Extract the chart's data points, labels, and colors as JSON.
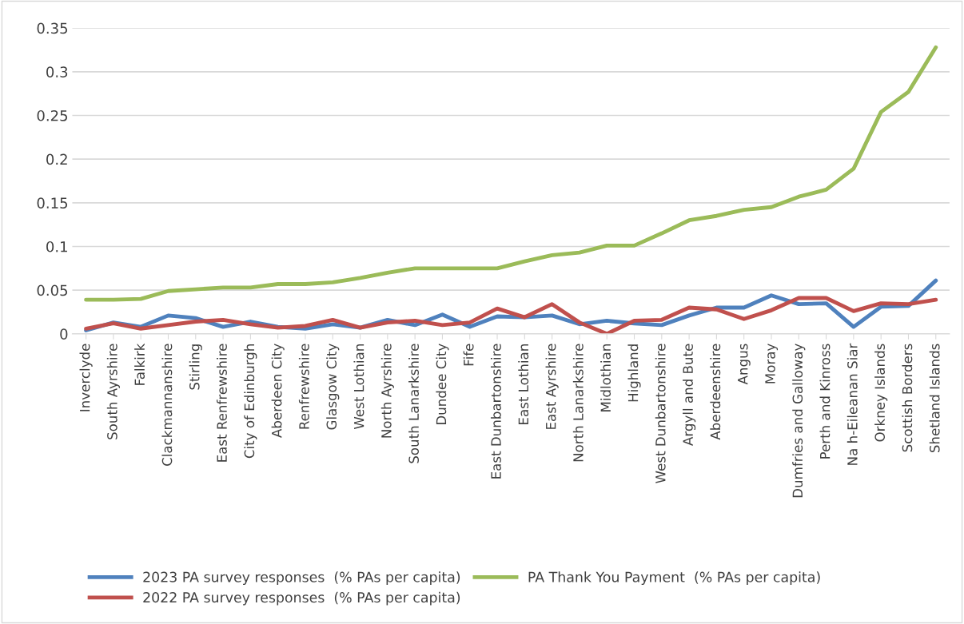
{
  "chart_data": {
    "type": "line",
    "categories": [
      "Inverclyde",
      "South Ayrshire",
      "Falkirk",
      "Clackmannanshire",
      "Stirling",
      "East Renfrewshire",
      "City of Edinburgh",
      "Aberdeen City",
      "Renfrewshire",
      "Glasgow City",
      "West Lothian",
      "North Ayrshire",
      "South Lanarkshire",
      "Dundee City",
      "Fife",
      "East Dunbartonshire",
      "East Lothian",
      "East Ayrshire",
      "North Lanarkshire",
      "Midlothian",
      "Highland",
      "West Dunbartonshire",
      "Argyll and Bute",
      "Aberdeenshire",
      "Angus",
      "Moray",
      "Dumfries and Galloway",
      "Perth and Kinross",
      "Na h-Eileanan Siar",
      "Orkney Islands",
      "Scottish Borders",
      "Shetland Islands"
    ],
    "series": [
      {
        "name": "2023 PA survey responses  (% PAs per capita)",
        "color": "#4f81bd",
        "values": [
          0.004,
          0.013,
          0.008,
          0.021,
          0.018,
          0.008,
          0.014,
          0.008,
          0.006,
          0.011,
          0.007,
          0.016,
          0.01,
          0.022,
          0.008,
          0.02,
          0.019,
          0.021,
          0.011,
          0.015,
          0.012,
          0.01,
          0.021,
          0.03,
          0.03,
          0.044,
          0.034,
          0.035,
          0.008,
          0.031,
          0.032,
          0.061
        ]
      },
      {
        "name": "2022 PA survey responses  (% PAs per capita)",
        "color": "#c0504d",
        "values": [
          0.006,
          0.012,
          0.006,
          0.01,
          0.014,
          0.016,
          0.011,
          0.007,
          0.009,
          0.016,
          0.007,
          0.013,
          0.015,
          0.01,
          0.013,
          0.029,
          0.019,
          0.034,
          0.013,
          0.0,
          0.015,
          0.016,
          0.03,
          0.028,
          0.017,
          0.027,
          0.041,
          0.041,
          0.026,
          0.035,
          0.034,
          0.039
        ]
      },
      {
        "name": "PA Thank You Payment  (% PAs per capita)",
        "color": "#9bbb59",
        "values": [
          0.039,
          0.039,
          0.04,
          0.049,
          0.051,
          0.053,
          0.053,
          0.057,
          0.057,
          0.059,
          0.064,
          0.07,
          0.075,
          0.075,
          0.075,
          0.075,
          0.083,
          0.09,
          0.093,
          0.101,
          0.101,
          0.115,
          0.13,
          0.135,
          0.142,
          0.145,
          0.157,
          0.165,
          0.189,
          0.254,
          0.277,
          0.328
        ]
      }
    ],
    "ylim": [
      0,
      0.35
    ],
    "yticks": [
      0,
      0.05,
      0.1,
      0.15,
      0.2,
      0.25,
      0.3,
      0.35
    ],
    "grid": "y",
    "legend": "bottom",
    "marker": "none",
    "line_style": "solid"
  }
}
